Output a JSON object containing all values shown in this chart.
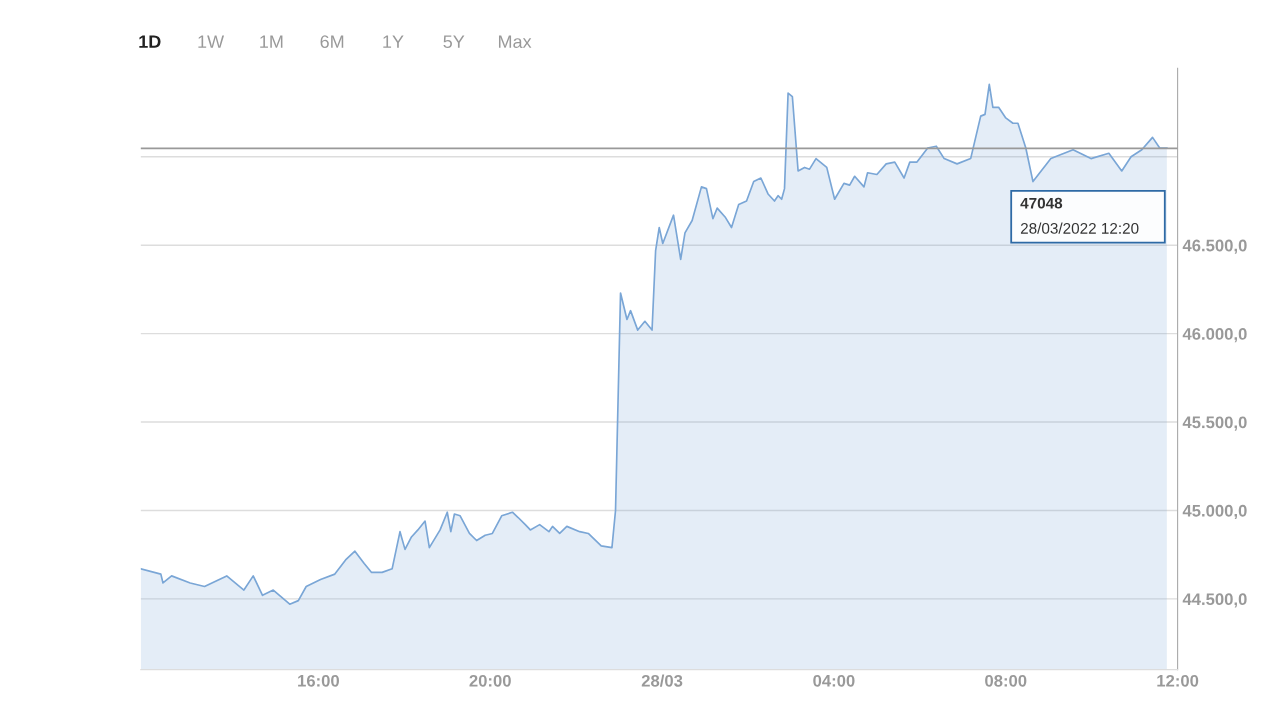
{
  "chart_data": {
    "type": "area",
    "x": [
      "2022-03-27T11:52",
      "2022-03-27T12:20",
      "2022-03-27T12:23",
      "2022-03-27T12:35",
      "2022-03-27T13:01",
      "2022-03-27T13:21",
      "2022-03-27T13:52",
      "2022-03-27T14:16",
      "2022-03-27T14:29",
      "2022-03-27T14:42",
      "2022-03-27T14:57",
      "2022-03-27T15:20",
      "2022-03-27T15:32",
      "2022-03-27T15:43",
      "2022-03-27T16:03",
      "2022-03-27T16:23",
      "2022-03-27T16:38",
      "2022-03-27T16:51",
      "2022-03-27T17:04",
      "2022-03-27T17:14",
      "2022-03-27T17:29",
      "2022-03-27T17:43",
      "2022-03-27T17:54",
      "2022-03-27T18:01",
      "2022-03-27T18:10",
      "2022-03-27T18:19",
      "2022-03-27T18:29",
      "2022-03-27T18:35",
      "2022-03-27T18:50",
      "2022-03-27T19:00",
      "2022-03-27T19:05",
      "2022-03-27T19:10",
      "2022-03-27T19:18",
      "2022-03-27T19:31",
      "2022-03-27T19:41",
      "2022-03-27T19:53",
      "2022-03-27T20:03",
      "2022-03-27T20:16",
      "2022-03-27T20:31",
      "2022-03-27T20:39",
      "2022-03-27T20:49",
      "2022-03-27T20:56",
      "2022-03-27T21:09",
      "2022-03-27T21:22",
      "2022-03-27T21:27",
      "2022-03-27T21:37",
      "2022-03-27T21:47",
      "2022-03-27T22:05",
      "2022-03-27T22:17",
      "2022-03-27T22:35",
      "2022-03-27T22:50",
      "2022-03-27T22:55",
      "2022-03-27T23:02",
      "2022-03-27T23:11",
      "2022-03-27T23:16",
      "2022-03-27T23:26",
      "2022-03-27T23:36",
      "2022-03-27T23:46",
      "2022-03-27T23:51",
      "2022-03-27T23:56",
      "2022-03-28T00:01",
      "2022-03-28T00:16",
      "2022-03-28T00:26",
      "2022-03-28T00:32",
      "2022-03-28T00:42",
      "2022-03-28T00:55",
      "2022-03-28T01:02",
      "2022-03-28T01:11",
      "2022-03-28T01:17",
      "2022-03-28T01:28",
      "2022-03-28T01:37",
      "2022-03-28T01:47",
      "2022-03-28T01:58",
      "2022-03-28T02:08",
      "2022-03-28T02:18",
      "2022-03-28T02:28",
      "2022-03-28T02:37",
      "2022-03-28T02:42",
      "2022-03-28T02:47",
      "2022-03-28T02:51",
      "2022-03-28T02:56",
      "2022-03-28T03:02",
      "2022-03-28T03:10",
      "2022-03-28T03:19",
      "2022-03-28T03:26",
      "2022-03-28T03:35",
      "2022-03-28T03:50",
      "2022-03-28T04:01",
      "2022-03-28T04:14",
      "2022-03-28T04:22",
      "2022-03-28T04:29",
      "2022-03-28T04:42",
      "2022-03-28T04:47",
      "2022-03-28T05:00",
      "2022-03-28T05:13",
      "2022-03-28T05:25",
      "2022-03-28T05:38",
      "2022-03-28T05:46",
      "2022-03-28T05:56",
      "2022-03-28T06:11",
      "2022-03-28T06:23",
      "2022-03-28T06:34",
      "2022-03-28T06:52",
      "2022-03-28T07:11",
      "2022-03-28T07:25",
      "2022-03-28T07:31",
      "2022-03-28T07:37",
      "2022-03-28T07:42",
      "2022-03-28T07:50",
      "2022-03-28T08:00",
      "2022-03-28T08:10",
      "2022-03-28T08:17",
      "2022-03-28T08:28",
      "2022-03-28T08:38",
      "2022-03-28T09:03",
      "2022-03-28T09:34",
      "2022-03-28T09:59",
      "2022-03-28T10:24",
      "2022-03-28T10:42",
      "2022-03-28T10:55",
      "2022-03-28T11:10",
      "2022-03-28T11:25",
      "2022-03-28T11:35",
      "2022-03-28T11:45"
    ],
    "series": [
      {
        "color": "#7aa6d6",
        "values": [
          44670,
          44640,
          44590,
          44630,
          44590,
          44570,
          44630,
          44550,
          44630,
          44520,
          44550,
          44470,
          44490,
          44570,
          44610,
          44640,
          44720,
          44770,
          44700,
          44650,
          44650,
          44670,
          44880,
          44780,
          44850,
          44890,
          44940,
          44790,
          44890,
          44990,
          44880,
          44980,
          44970,
          44870,
          44830,
          44860,
          44870,
          44970,
          44990,
          44960,
          44920,
          44890,
          44920,
          44880,
          44910,
          44870,
          44910,
          44880,
          44870,
          44800,
          44790,
          45000,
          46230,
          46080,
          46130,
          46020,
          46070,
          46020,
          46470,
          46600,
          46510,
          46670,
          46420,
          46570,
          46640,
          46830,
          46820,
          46650,
          46710,
          46660,
          46600,
          46730,
          46750,
          46860,
          46880,
          46790,
          46750,
          46780,
          46760,
          46820,
          47360,
          47340,
          46920,
          46940,
          46930,
          46990,
          46940,
          46760,
          46850,
          46840,
          46890,
          46830,
          46910,
          46900,
          46960,
          46970,
          46880,
          46970,
          46970,
          47050,
          47060,
          46990,
          46960,
          46990,
          47230,
          47240,
          47410,
          47280,
          47280,
          47220,
          47190,
          47190,
          47050,
          46860,
          46990,
          47040,
          46990,
          47020,
          46920,
          47000,
          47040,
          47110,
          47050,
          47050
        ]
      }
    ],
    "xlim": [
      "2022-03-27T11:52",
      "2022-03-28T12:00"
    ],
    "xticks": [
      {
        "value": "2022-03-27T16:00",
        "label": "16:00"
      },
      {
        "value": "2022-03-27T20:00",
        "label": "20:00"
      },
      {
        "value": "2022-03-28T00:00",
        "label": "28/03"
      },
      {
        "value": "2022-03-28T04:00",
        "label": "04:00"
      },
      {
        "value": "2022-03-28T08:00",
        "label": "08:00"
      },
      {
        "value": "2022-03-28T12:00",
        "label": "12:00"
      }
    ],
    "ylim": [
      44100,
      47500
    ],
    "yticks": [
      {
        "value": 44500,
        "label": "44.500,0"
      },
      {
        "value": 45000,
        "label": "45.000,0"
      },
      {
        "value": 45500,
        "label": "45.500,0"
      },
      {
        "value": 46000,
        "label": "46.000,0"
      },
      {
        "value": 46500,
        "label": "46.500,0"
      },
      {
        "value": 47000,
        "label": null
      }
    ],
    "grid": "y",
    "ref_lines": [
      {
        "axis": "y",
        "value": 47048,
        "color": "#999999"
      }
    ],
    "annotations": [
      "1D",
      "1W",
      "1M",
      "6M",
      "1Y",
      "5Y",
      "Max",
      "47048",
      "28/03/2022 12:20"
    ]
  }
}
